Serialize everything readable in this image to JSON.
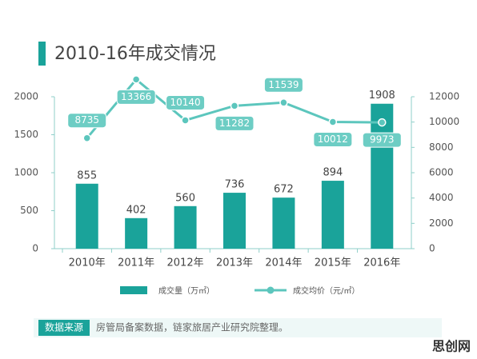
{
  "chart_data": {
    "type": "combo",
    "title": "2010-16年成交情况",
    "categories": [
      "2010年",
      "2011年",
      "2012年",
      "2013年",
      "2014年",
      "2015年",
      "2016年"
    ],
    "series": [
      {
        "name": "成交量（万㎡）",
        "type": "bar",
        "color": "#1aa39a",
        "values": [
          855,
          402,
          560,
          736,
          672,
          894,
          1908
        ]
      },
      {
        "name": "成交均价（元/㎡）",
        "type": "line",
        "axis": "y2",
        "color": "#5cc6bd",
        "values": [
          8735,
          13366,
          10140,
          11282,
          11539,
          10012,
          9973
        ]
      }
    ],
    "ylim": [
      0,
      2000
    ],
    "yticks": [
      0,
      500,
      1000,
      1500,
      2000
    ],
    "y2lim": [
      0,
      12000
    ],
    "y2ticks": [
      0,
      2000,
      4000,
      6000,
      8000,
      10000,
      12000
    ],
    "source_label": "数据来源",
    "source": "房管局备案数据，链家旅居产业研究院整理。",
    "watermark": "思创网"
  }
}
